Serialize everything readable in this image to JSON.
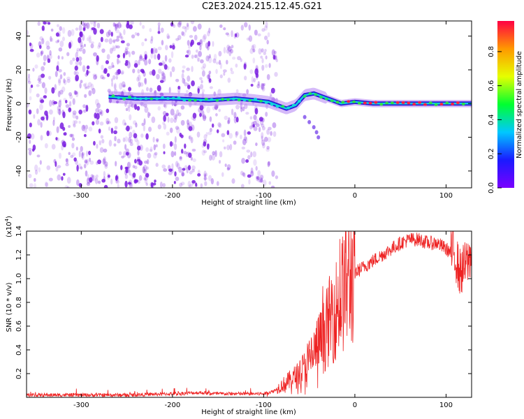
{
  "title": "C2E3.2024.215.12.45.G21",
  "colors": {
    "snr_line": "#ee2222",
    "spectrogram_scatter": "#7a1fe0",
    "colorbar": [
      "#7a00ff",
      "#1a1aff",
      "#00c8ff",
      "#00ff30",
      "#e6ff00",
      "#ff9900",
      "#ff0044"
    ]
  },
  "chart_data": [
    {
      "type": "heatmap",
      "title": "",
      "xlabel": "Height of straight line (km)",
      "ylabel": "Frequency (Hz)",
      "xlim": [
        -360,
        128
      ],
      "ylim": [
        -50,
        49
      ],
      "xticks": [
        -300,
        -200,
        -100,
        0,
        100
      ],
      "yticks": [
        -40,
        -20,
        0,
        20,
        40
      ],
      "colorbar": {
        "label": "Normalized spectral amplitude",
        "range": [
          0,
          0.98
        ],
        "ticks": [
          "0.0",
          "0.2",
          "0.4",
          "0.6",
          "0.8"
        ]
      },
      "scatter_noise_extent_km": [
        -360,
        -100
      ],
      "carrier_track": {
        "x": [
          -270,
          -240,
          -200,
          -160,
          -130,
          -110,
          -95,
          -85,
          -75,
          -65,
          -55,
          -45,
          -35,
          -25,
          -15,
          0,
          20,
          60,
          100,
          128
        ],
        "y": [
          4,
          3,
          3,
          2,
          3,
          2,
          1,
          -1,
          -3,
          -1,
          5,
          6,
          4,
          2,
          0,
          1,
          0,
          0,
          0,
          0
        ]
      },
      "secondary_trace": {
        "x": [
          -55,
          -50,
          -45,
          -42,
          -40
        ],
        "y": [
          -8,
          -11,
          -14,
          -17,
          -20
        ]
      }
    },
    {
      "type": "line",
      "title": "",
      "xlabel": "Height of straight line (km)",
      "ylabel": "SNR (10 * v/v)",
      "scale_label": "(x10",
      "scale_exponent": "4",
      "scale_suffix": ")",
      "xlim": [
        -360,
        128
      ],
      "ylim": [
        0,
        1.4
      ],
      "xticks": [
        -300,
        -200,
        -100,
        0,
        100
      ],
      "yticks": [
        0.2,
        0.4,
        0.6,
        0.8,
        1.0,
        1.2,
        1.4
      ],
      "series": [
        {
          "x": [
            -360,
            -300,
            -250,
            -200,
            -170,
            -150,
            -120,
            -100,
            -90,
            -80,
            -70,
            -60,
            -50,
            -40,
            -35,
            -30,
            -25,
            -20,
            -15,
            -10,
            -5,
            0,
            10,
            20,
            30,
            40,
            50,
            60,
            70,
            80,
            90,
            100,
            110,
            115,
            120,
            125,
            128
          ],
          "values": [
            0.02,
            0.02,
            0.02,
            0.03,
            0.04,
            0.03,
            0.03,
            0.03,
            0.05,
            0.1,
            0.15,
            0.2,
            0.3,
            0.45,
            0.5,
            0.6,
            0.7,
            0.75,
            0.85,
            0.95,
            1.0,
            1.05,
            1.1,
            1.15,
            1.2,
            1.25,
            1.3,
            1.33,
            1.33,
            1.3,
            1.3,
            1.25,
            1.2,
            1.05,
            1.1,
            1.15,
            1.25
          ]
        }
      ]
    }
  ]
}
